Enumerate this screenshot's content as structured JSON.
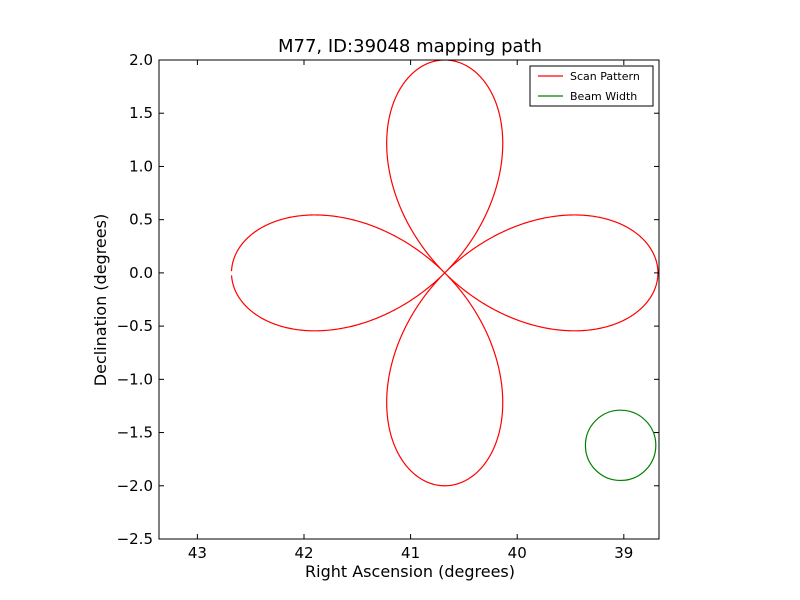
{
  "chart_data": {
    "type": "line",
    "title": "M77, ID:39048 mapping path",
    "xlabel": "Right Ascension (degrees)",
    "ylabel": "Declination (degrees)",
    "xlim": [
      43.36,
      38.67
    ],
    "ylim": [
      -2.5,
      2.0
    ],
    "x_inverted": true,
    "xticks": [
      43,
      42,
      41,
      40,
      39
    ],
    "yticks": [
      -2.5,
      -2.0,
      -1.5,
      -1.0,
      -0.5,
      0.0,
      0.5,
      1.0,
      1.5,
      2.0
    ],
    "xtick_labels": [
      "43",
      "42",
      "41",
      "40",
      "39"
    ],
    "ytick_labels": [
      "−2.5",
      "−2.0",
      "−1.5",
      "−1.0",
      "−0.5",
      "0.0",
      "0.5",
      "1.0",
      "1.5",
      "2.0"
    ],
    "grid": false,
    "legend_position": "top-right",
    "series": [
      {
        "name": "Scan Pattern",
        "color": "#ff0000",
        "shape": "four-petal rose centred on (40.68, 0.0), petal length 2.0 degrees, ends near (42.68, -0.03)",
        "center": [
          40.68,
          0.0
        ],
        "petal_length": 2.0
      },
      {
        "name": "Beam Width",
        "color": "#008000",
        "shape": "circle",
        "center": [
          39.03,
          -1.62
        ],
        "radius": 0.33
      }
    ]
  }
}
